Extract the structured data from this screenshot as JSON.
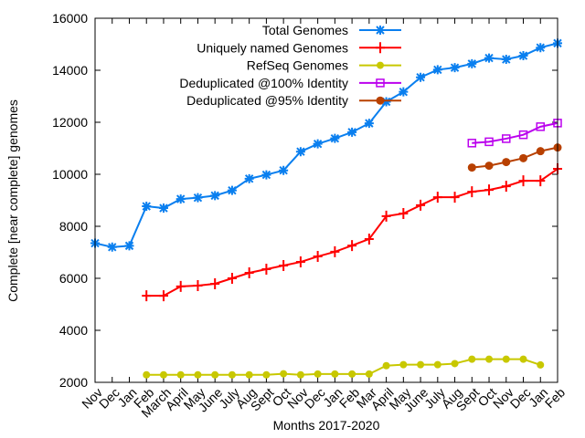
{
  "chart_data": {
    "type": "line",
    "title": "",
    "xlabel": "Months 2017-2020",
    "ylabel": "Complete [near complete] genomes",
    "ylim": [
      2000,
      16000
    ],
    "yticks": [
      2000,
      4000,
      6000,
      8000,
      10000,
      12000,
      14000,
      16000
    ],
    "categories": [
      "Nov",
      "Dec",
      "Jan",
      "Feb",
      "March",
      "April",
      "May",
      "June",
      "July",
      "Aug",
      "Sept",
      "Oct",
      "Nov",
      "Dec",
      "Jan",
      "Feb",
      "Mar",
      "April",
      "May",
      "June",
      "July",
      "Aug",
      "Sept",
      "Oct",
      "Nov",
      "Dec",
      "Jan",
      "Feb"
    ],
    "legend_position": "top-right",
    "grid": false,
    "series": [
      {
        "name": "Total Genomes",
        "color": "#0a7fef",
        "marker": "star",
        "values": [
          7350,
          7200,
          7250,
          8770,
          8700,
          9050,
          9100,
          9180,
          9380,
          9830,
          9980,
          10150,
          10870,
          11170,
          11380,
          11620,
          11960,
          12790,
          13170,
          13730,
          14020,
          14100,
          14250,
          14470,
          14420,
          14560,
          14870,
          15040
        ]
      },
      {
        "name": "Uniquely named Genomes",
        "color": "#ff0000",
        "marker": "plus",
        "values": [
          null,
          null,
          null,
          5330,
          5330,
          5690,
          5720,
          5790,
          6000,
          6210,
          6350,
          6490,
          6630,
          6840,
          7020,
          7260,
          7510,
          8390,
          8490,
          8810,
          9120,
          9120,
          9330,
          9400,
          9540,
          9750,
          9750,
          10210
        ]
      },
      {
        "name": "RefSeq Genomes",
        "color": "#c8c800",
        "marker": "dot",
        "values": [
          null,
          null,
          null,
          2290,
          2290,
          2290,
          2290,
          2290,
          2290,
          2290,
          2290,
          2330,
          2290,
          2320,
          2320,
          2320,
          2320,
          2640,
          2680,
          2680,
          2680,
          2720,
          2890,
          2890,
          2890,
          2890,
          2670,
          null
        ]
      },
      {
        "name": "Deduplicated @100% Identity",
        "color": "#bb00ee",
        "marker": "square",
        "values": [
          null,
          null,
          null,
          null,
          null,
          null,
          null,
          null,
          null,
          null,
          null,
          null,
          null,
          null,
          null,
          null,
          null,
          null,
          null,
          null,
          null,
          null,
          11200,
          11250,
          11370,
          11520,
          11830,
          11970
        ]
      },
      {
        "name": "Deduplicated @95% Identity",
        "color": "#b84000",
        "marker": "circle",
        "values": [
          null,
          null,
          null,
          null,
          null,
          null,
          null,
          null,
          null,
          null,
          null,
          null,
          null,
          null,
          null,
          null,
          null,
          null,
          null,
          null,
          null,
          null,
          10260,
          10330,
          10470,
          10620,
          10890,
          11030
        ]
      }
    ]
  }
}
